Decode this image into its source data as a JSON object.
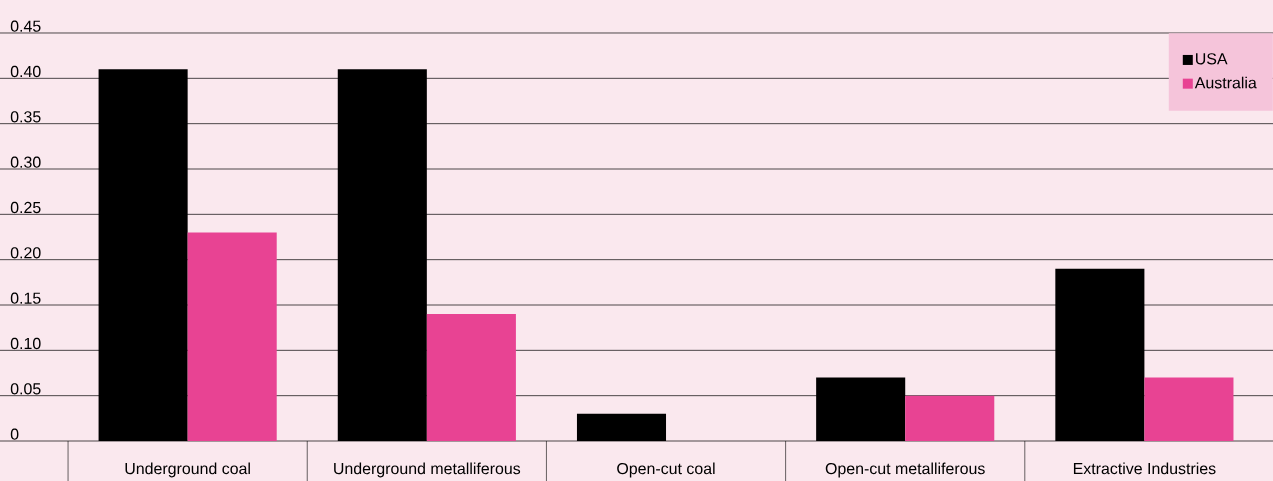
{
  "chart_data": {
    "type": "bar",
    "categories": [
      "Underground coal",
      "Underground metalliferous",
      "Open-cut coal",
      "Open-cut metalliferous",
      "Extractive Industries"
    ],
    "series": [
      {
        "name": "USA",
        "color": "#000000",
        "values": [
          0.41,
          0.41,
          0.03,
          0.07,
          0.19
        ]
      },
      {
        "name": "Australia",
        "color": "#e84393",
        "values": [
          0.23,
          0.14,
          0,
          0.05,
          0.07
        ]
      }
    ],
    "ylim": [
      0,
      0.45
    ],
    "yticks": [
      0,
      {
        "value": 0.05,
        "label": "0.05"
      },
      {
        "value": 0.1,
        "label": "0.10"
      },
      {
        "value": 0.15,
        "label": "0.15"
      },
      {
        "value": 0.2,
        "label": "0.20"
      },
      {
        "value": 0.25,
        "label": "0.25"
      },
      {
        "value": 0.3,
        "label": "0.30"
      },
      {
        "value": 0.35,
        "label": "0.35"
      },
      {
        "value": 0.4,
        "label": "0.40"
      },
      {
        "value": 0.45,
        "label": "0.45"
      }
    ],
    "grid": "y",
    "legend": "top right"
  }
}
